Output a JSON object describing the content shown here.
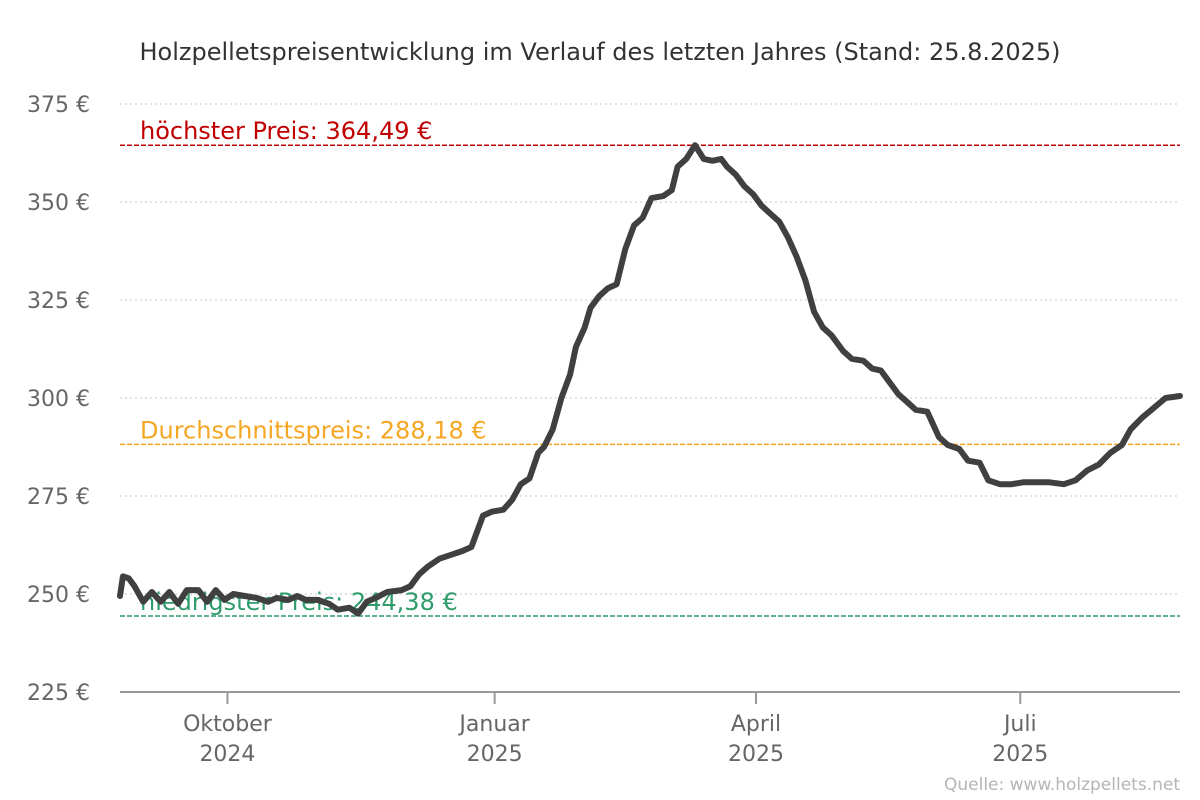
{
  "chart_data": {
    "type": "line",
    "title": "Holzpelletspreisentwicklung im Verlauf des letzten Jahres (Stand: 25.8.2025)",
    "source": "Quelle: www.holzpellets.net",
    "ylim": [
      225,
      375
    ],
    "yticks": [
      {
        "value": 225,
        "label": "225 €"
      },
      {
        "value": 250,
        "label": "250 €"
      },
      {
        "value": 275,
        "label": "275 €"
      },
      {
        "value": 300,
        "label": "300 €"
      },
      {
        "value": 325,
        "label": "325 €"
      },
      {
        "value": 350,
        "label": "350 €"
      },
      {
        "value": 375,
        "label": "375 €"
      }
    ],
    "grid": true,
    "x_start": "2024-08-25",
    "x_end": "2025-08-25",
    "xticks": [
      {
        "date": "2024-10-01",
        "line1": "Oktober",
        "line2": "2024"
      },
      {
        "date": "2025-01-01",
        "line1": "Januar",
        "line2": "2025"
      },
      {
        "date": "2025-04-01",
        "line1": "April",
        "line2": "2025"
      },
      {
        "date": "2025-07-01",
        "line1": "Juli",
        "line2": "2025"
      }
    ],
    "reference_lines": [
      {
        "label": "höchster Preis: 364,49 €",
        "value": 364.49,
        "color": "#c00000"
      },
      {
        "label": "Durchschnittspreis: 288,18 €",
        "value": 288.18,
        "color": "#f5a623"
      },
      {
        "label": "niedrigster Preis: 244,38 €",
        "value": 244.38,
        "color": "#2e9b6b"
      }
    ],
    "series": [
      {
        "color": "#404040",
        "points": [
          [
            "2024-08-25",
            249.5
          ],
          [
            "2024-08-26",
            254.5
          ],
          [
            "2024-08-28",
            254.0
          ],
          [
            "2024-08-30",
            252.0
          ],
          [
            "2024-09-02",
            248.0
          ],
          [
            "2024-09-05",
            250.5
          ],
          [
            "2024-09-08",
            248.0
          ],
          [
            "2024-09-11",
            250.5
          ],
          [
            "2024-09-14",
            247.5
          ],
          [
            "2024-09-17",
            251.0
          ],
          [
            "2024-09-21",
            251.0
          ],
          [
            "2024-09-24",
            248.0
          ],
          [
            "2024-09-27",
            251.0
          ],
          [
            "2024-09-30",
            248.5
          ],
          [
            "2024-10-03",
            250.0
          ],
          [
            "2024-10-07",
            249.5
          ],
          [
            "2024-10-11",
            249.0
          ],
          [
            "2024-10-15",
            248.0
          ],
          [
            "2024-10-18",
            249.0
          ],
          [
            "2024-10-22",
            248.5
          ],
          [
            "2024-10-25",
            249.5
          ],
          [
            "2024-10-28",
            248.5
          ],
          [
            "2024-11-01",
            248.5
          ],
          [
            "2024-11-05",
            247.5
          ],
          [
            "2024-11-08",
            246.0
          ],
          [
            "2024-11-12",
            246.5
          ],
          [
            "2024-11-15",
            245.0
          ],
          [
            "2024-11-18",
            248.0
          ],
          [
            "2024-11-21",
            249.0
          ],
          [
            "2024-11-25",
            250.5
          ],
          [
            "2024-11-30",
            251.0
          ],
          [
            "2024-12-03",
            252.0
          ],
          [
            "2024-12-06",
            255.0
          ],
          [
            "2024-12-09",
            257.0
          ],
          [
            "2024-12-13",
            259.0
          ],
          [
            "2024-12-17",
            260.0
          ],
          [
            "2024-12-21",
            261.0
          ],
          [
            "2024-12-24",
            262.0
          ],
          [
            "2024-12-26",
            266.0
          ],
          [
            "2024-12-28",
            270.0
          ],
          [
            "2024-12-31",
            271.0
          ],
          [
            "2025-01-04",
            271.5
          ],
          [
            "2025-01-07",
            274.0
          ],
          [
            "2025-01-10",
            278.0
          ],
          [
            "2025-01-13",
            279.5
          ],
          [
            "2025-01-16",
            286.0
          ],
          [
            "2025-01-18",
            287.5
          ],
          [
            "2025-01-21",
            292.0
          ],
          [
            "2025-01-24",
            300.0
          ],
          [
            "2025-01-27",
            306.0
          ],
          [
            "2025-01-29",
            313.0
          ],
          [
            "2025-02-01",
            318.0
          ],
          [
            "2025-02-03",
            323.0
          ],
          [
            "2025-02-06",
            326.0
          ],
          [
            "2025-02-09",
            328.0
          ],
          [
            "2025-02-12",
            329.0
          ],
          [
            "2025-02-15",
            338.0
          ],
          [
            "2025-02-18",
            344.0
          ],
          [
            "2025-02-21",
            346.0
          ],
          [
            "2025-02-24",
            351.0
          ],
          [
            "2025-02-28",
            351.5
          ],
          [
            "2025-03-03",
            353.0
          ],
          [
            "2025-03-05",
            359.0
          ],
          [
            "2025-03-08",
            361.0
          ],
          [
            "2025-03-11",
            364.5
          ],
          [
            "2025-03-14",
            361.0
          ],
          [
            "2025-03-17",
            360.5
          ],
          [
            "2025-03-20",
            361.0
          ],
          [
            "2025-03-22",
            359.0
          ],
          [
            "2025-03-25",
            357.0
          ],
          [
            "2025-03-28",
            354.0
          ],
          [
            "2025-03-31",
            352.0
          ],
          [
            "2025-04-03",
            349.0
          ],
          [
            "2025-04-06",
            347.0
          ],
          [
            "2025-04-09",
            345.0
          ],
          [
            "2025-04-12",
            341.0
          ],
          [
            "2025-04-15",
            336.0
          ],
          [
            "2025-04-18",
            330.0
          ],
          [
            "2025-04-21",
            322.0
          ],
          [
            "2025-04-24",
            318.0
          ],
          [
            "2025-04-27",
            316.0
          ],
          [
            "2025-05-01",
            312.0
          ],
          [
            "2025-05-04",
            310.0
          ],
          [
            "2025-05-08",
            309.5
          ],
          [
            "2025-05-11",
            307.5
          ],
          [
            "2025-05-14",
            307.0
          ],
          [
            "2025-05-17",
            304.0
          ],
          [
            "2025-05-20",
            301.0
          ],
          [
            "2025-05-23",
            299.0
          ],
          [
            "2025-05-26",
            297.0
          ],
          [
            "2025-05-30",
            296.5
          ],
          [
            "2025-06-03",
            290.0
          ],
          [
            "2025-06-06",
            288.0
          ],
          [
            "2025-06-10",
            287.0
          ],
          [
            "2025-06-13",
            284.0
          ],
          [
            "2025-06-17",
            283.5
          ],
          [
            "2025-06-20",
            279.0
          ],
          [
            "2025-06-24",
            278.0
          ],
          [
            "2025-06-28",
            278.0
          ],
          [
            "2025-07-02",
            278.5
          ],
          [
            "2025-07-06",
            278.5
          ],
          [
            "2025-07-11",
            278.5
          ],
          [
            "2025-07-16",
            278.0
          ],
          [
            "2025-07-20",
            279.0
          ],
          [
            "2025-07-24",
            281.5
          ],
          [
            "2025-07-28",
            283.0
          ],
          [
            "2025-08-01",
            286.0
          ],
          [
            "2025-08-05",
            288.0
          ],
          [
            "2025-08-08",
            292.0
          ],
          [
            "2025-08-12",
            295.0
          ],
          [
            "2025-08-16",
            297.5
          ],
          [
            "2025-08-20",
            300.0
          ],
          [
            "2025-08-25",
            300.5
          ]
        ]
      }
    ]
  }
}
